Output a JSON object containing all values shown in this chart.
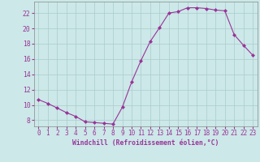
{
  "x": [
    0,
    1,
    2,
    3,
    4,
    5,
    6,
    7,
    8,
    9,
    10,
    11,
    12,
    13,
    14,
    15,
    16,
    17,
    18,
    19,
    20,
    21,
    22,
    23
  ],
  "y": [
    10.7,
    10.2,
    9.6,
    9.0,
    8.5,
    7.8,
    7.7,
    7.6,
    7.5,
    9.7,
    13.0,
    15.8,
    18.3,
    20.1,
    22.0,
    22.2,
    22.7,
    22.7,
    22.6,
    22.4,
    22.3,
    19.2,
    17.8,
    16.5
  ],
  "line_color": "#993399",
  "marker": "D",
  "marker_size": 2.0,
  "bg_color": "#cce8e8",
  "grid_color": "#aacccc",
  "xlabel": "Windchill (Refroidissement éolien,°C)",
  "ylabel_ticks": [
    8,
    10,
    12,
    14,
    16,
    18,
    20,
    22
  ],
  "xlim": [
    -0.5,
    23.5
  ],
  "ylim": [
    7.2,
    23.5
  ],
  "xtick_labels": [
    "0",
    "1",
    "2",
    "3",
    "4",
    "5",
    "6",
    "7",
    "8",
    "9",
    "10",
    "11",
    "12",
    "13",
    "14",
    "15",
    "16",
    "17",
    "18",
    "19",
    "20",
    "21",
    "22",
    "23"
  ],
  "label_color": "#993399",
  "tick_color": "#993399",
  "font_size_xlabel": 5.8,
  "font_size_ytick": 5.8,
  "font_size_xtick": 5.5
}
